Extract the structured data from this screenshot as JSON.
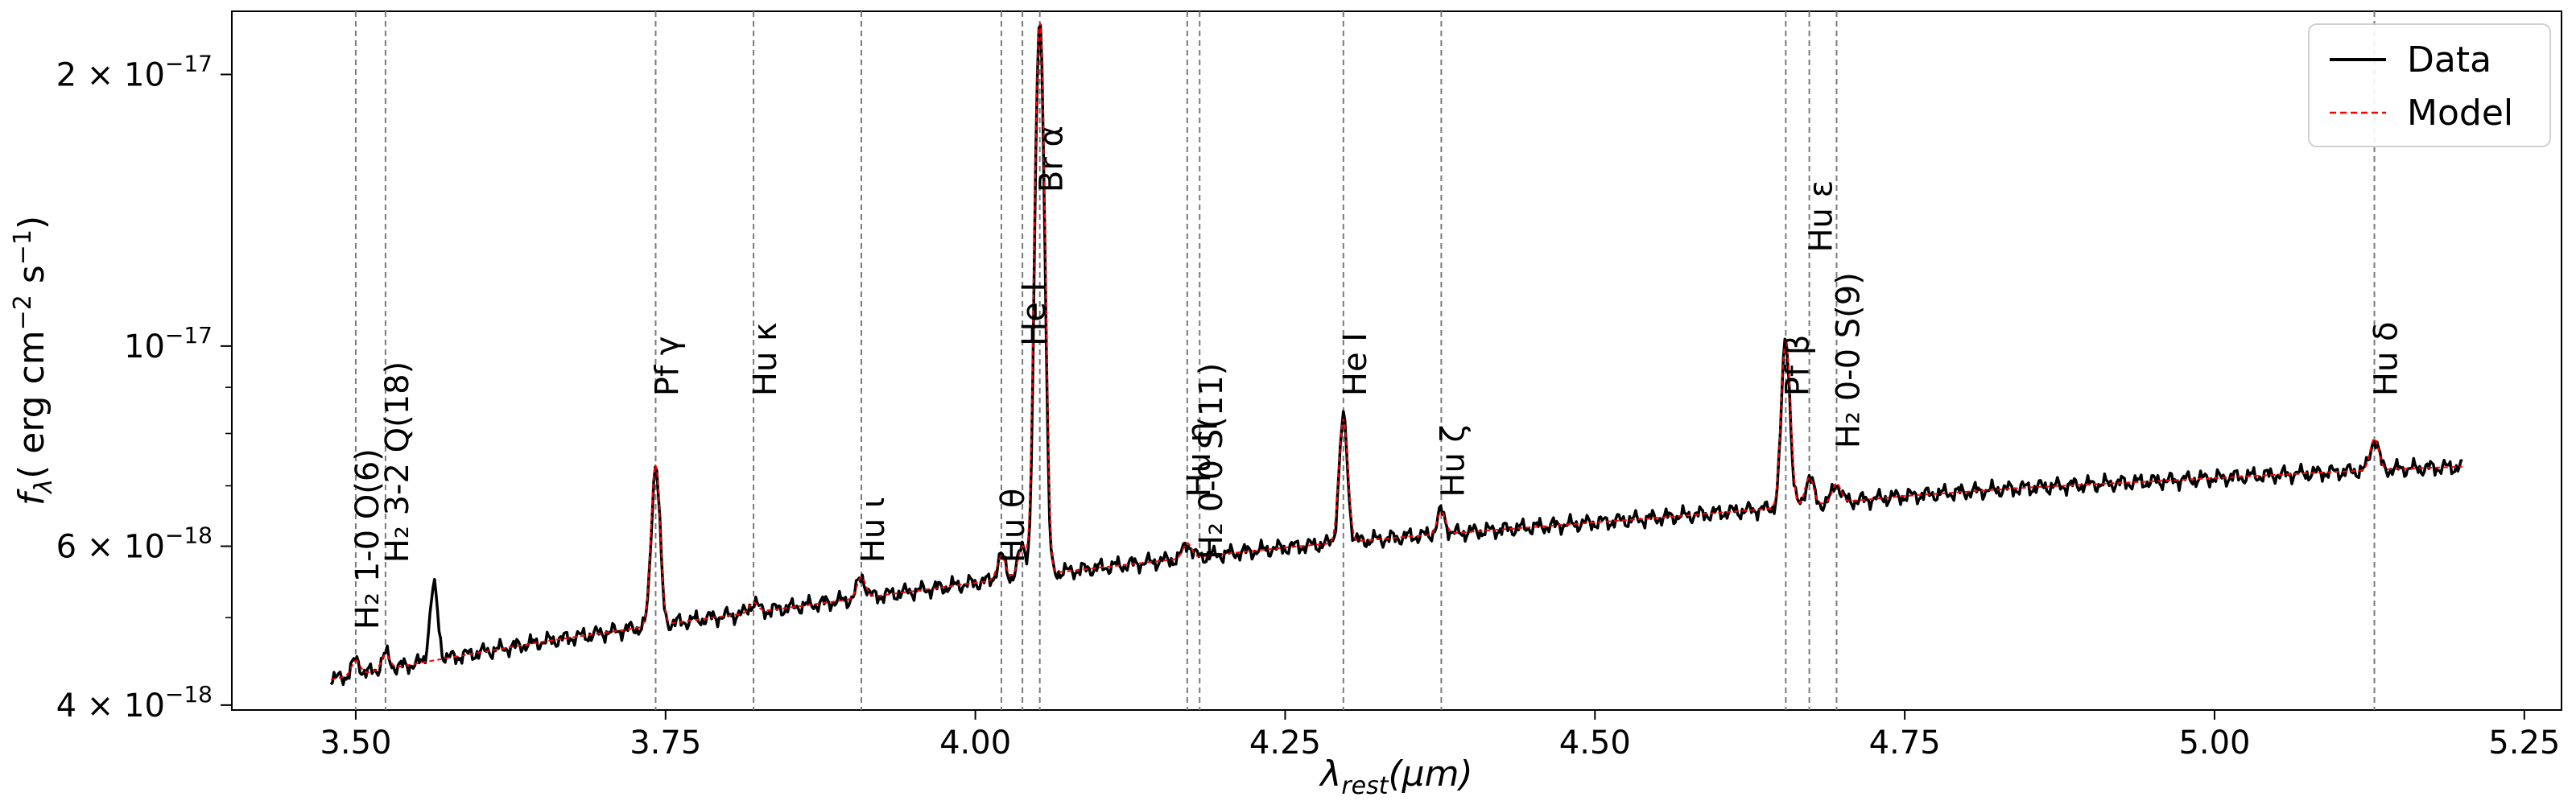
{
  "chart_data": {
    "type": "line",
    "xlabel_main": "λ",
    "xlabel_sub": "rest",
    "xlabel_unit": "(μm)",
    "ylabel_main": "f",
    "ylabel_sub": "λ",
    "ylabel_unit": "( erg cm",
    "ylabel_exp1": "−2",
    "ylabel_mid": " s",
    "ylabel_exp2": "−1",
    "ylabel_end": ")",
    "xlim": [
      3.4,
      5.28
    ],
    "ylim": [
      3.95e-18,
      2.35e-17
    ],
    "yscale": "log",
    "xticks": [
      3.5,
      3.75,
      4.0,
      4.25,
      4.5,
      4.75,
      5.0,
      5.25
    ],
    "xtick_labels": [
      "3.50",
      "3.75",
      "4.00",
      "4.25",
      "4.50",
      "4.75",
      "5.00",
      "5.25"
    ],
    "yticks": [
      {
        "value": 4e-18,
        "mant": "4",
        "exp": "−18"
      },
      {
        "value": 6e-18,
        "mant": "6",
        "exp": "−18"
      },
      {
        "value": 1e-17,
        "mant": "",
        "exp": "−17"
      },
      {
        "value": 2e-17,
        "mant": "2",
        "exp": "−17"
      }
    ],
    "grid": false,
    "legend": {
      "placement": "top-right",
      "entries": [
        {
          "label": "Data",
          "color": "#000000",
          "style": "solid"
        },
        {
          "label": "Model",
          "color": "#ff0000",
          "style": "dashed"
        }
      ]
    },
    "continuum": [
      [
        3.48,
        4.27e-18
      ],
      [
        3.55,
        4.45e-18
      ],
      [
        3.65,
        4.7e-18
      ],
      [
        3.75,
        4.92e-18
      ],
      [
        3.85,
        5.13e-18
      ],
      [
        3.95,
        5.35e-18
      ],
      [
        4.05,
        5.58e-18
      ],
      [
        4.15,
        5.78e-18
      ],
      [
        4.25,
        5.98e-18
      ],
      [
        4.35,
        6.15e-18
      ],
      [
        4.45,
        6.3e-18
      ],
      [
        4.55,
        6.45e-18
      ],
      [
        4.65,
        6.62e-18
      ],
      [
        4.75,
        6.82e-18
      ],
      [
        4.85,
        6.97e-18
      ],
      [
        4.95,
        7.08e-18
      ],
      [
        5.05,
        7.2e-18
      ],
      [
        5.15,
        7.31e-18
      ],
      [
        5.2,
        7.35e-18
      ]
    ],
    "emission_lines": [
      {
        "x": 3.5,
        "peak": 4.48e-18
      },
      {
        "x": 3.524,
        "peak": 4.55e-18
      },
      {
        "x": 3.563,
        "peak": 5.4e-18,
        "data_only": true
      },
      {
        "x": 3.742,
        "peak": 7.4e-18
      },
      {
        "x": 3.821,
        "peak": 5.2e-18
      },
      {
        "x": 3.908,
        "peak": 5.55e-18
      },
      {
        "x": 4.021,
        "peak": 5.85e-18
      },
      {
        "x": 4.038,
        "peak": 6e-18
      },
      {
        "x": 4.052,
        "peak": 2.3e-17
      },
      {
        "x": 4.171,
        "peak": 6.05e-18
      },
      {
        "x": 4.297,
        "peak": 8.3e-18
      },
      {
        "x": 4.376,
        "peak": 6.55e-18
      },
      {
        "x": 4.654,
        "peak": 1.02e-17
      },
      {
        "x": 4.673,
        "peak": 7.15e-18
      },
      {
        "x": 4.695,
        "peak": 7.05e-18
      },
      {
        "x": 5.129,
        "peak": 7.9e-18
      }
    ],
    "spectrum_x_range": [
      3.48,
      5.2
    ],
    "annotations": [
      {
        "x": 3.5,
        "label_y": 4.85e-18,
        "label": "H₂ 1-0 O(6)"
      },
      {
        "x": 3.524,
        "label_y": 5.75e-18,
        "label": "H₂ 3-2 Q(18)"
      },
      {
        "x": 3.742,
        "label_y": 8.8e-18,
        "label": "Pf γ"
      },
      {
        "x": 3.821,
        "label_y": 8.8e-18,
        "label": "Hu κ"
      },
      {
        "x": 3.908,
        "label_y": 5.75e-18,
        "label": "Hu ι"
      },
      {
        "x": 4.021,
        "label_y": 5.75e-18,
        "label": "Hu θ"
      },
      {
        "x": 4.038,
        "label_y": 1e-17,
        "label": "He I"
      },
      {
        "x": 4.052,
        "label_y": 1.48e-17,
        "label": "Br α"
      },
      {
        "x": 4.171,
        "label_y": 6.8e-18,
        "label": "Hu η"
      },
      {
        "x": 4.181,
        "label_y": 5.8e-18,
        "label": "H₂ 0-0 S(11)"
      },
      {
        "x": 4.297,
        "label_y": 8.8e-18,
        "label": "He I"
      },
      {
        "x": 4.376,
        "label_y": 6.8e-18,
        "label": "Hu ζ"
      },
      {
        "x": 4.654,
        "label_y": 8.8e-18,
        "label": "Pf β"
      },
      {
        "x": 4.673,
        "label_y": 1.27e-17,
        "label": "Hu ε"
      },
      {
        "x": 4.695,
        "label_y": 7.7e-18,
        "label": "H₂ 0-0 S(9)"
      },
      {
        "x": 5.129,
        "label_y": 8.8e-18,
        "label": "Hu δ"
      }
    ]
  }
}
